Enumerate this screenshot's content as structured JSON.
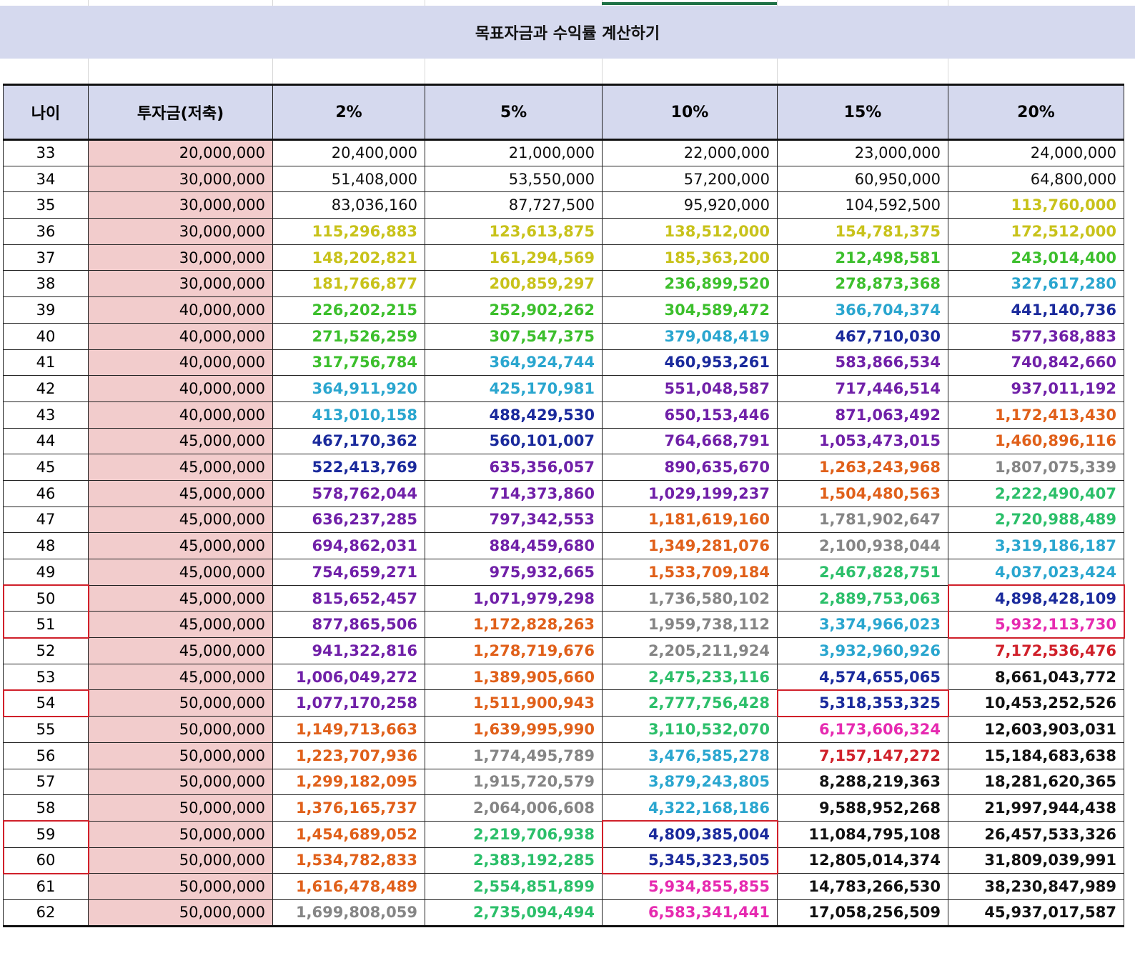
{
  "banner": {
    "title": "목표자금과 수익률 계산하기"
  },
  "headers": [
    "나이",
    "투자금(저축)",
    "2%",
    "5%",
    "10%",
    "15%",
    "20%"
  ],
  "colors": {
    "k": "#111111",
    "y": "#c8c21a",
    "g": "#3cbf2c",
    "c": "#2aa6cf",
    "n": "#1a2a9c",
    "p": "#7020a8",
    "o": "#e0601a",
    "s": "#858585",
    "m": "#e62ab0",
    "t": "#2cbf6a",
    "r": "#d0202a",
    "banner_bg": "#d5d9ee",
    "investment_bg": "#f2cccc",
    "highlight": "#d0202a"
  },
  "rows": [
    {
      "age": "33",
      "investment": "20,000,000",
      "values": [
        "20,400,000",
        "21,000,000",
        "22,000,000",
        "23,000,000",
        "24,000,000"
      ],
      "styles": [
        "k",
        "k",
        "k",
        "k",
        "k"
      ]
    },
    {
      "age": "34",
      "investment": "30,000,000",
      "values": [
        "51,408,000",
        "53,550,000",
        "57,200,000",
        "60,950,000",
        "64,800,000"
      ],
      "styles": [
        "k",
        "k",
        "k",
        "k",
        "k"
      ]
    },
    {
      "age": "35",
      "investment": "30,000,000",
      "values": [
        "83,036,160",
        "87,727,500",
        "95,920,000",
        "104,592,500",
        "113,760,000"
      ],
      "styles": [
        "k",
        "k",
        "k",
        "k",
        "y"
      ]
    },
    {
      "age": "36",
      "investment": "30,000,000",
      "values": [
        "115,296,883",
        "123,613,875",
        "138,512,000",
        "154,781,375",
        "172,512,000"
      ],
      "styles": [
        "y",
        "y",
        "y",
        "y",
        "y"
      ]
    },
    {
      "age": "37",
      "investment": "30,000,000",
      "values": [
        "148,202,821",
        "161,294,569",
        "185,363,200",
        "212,498,581",
        "243,014,400"
      ],
      "styles": [
        "y",
        "y",
        "y",
        "g",
        "g"
      ]
    },
    {
      "age": "38",
      "investment": "30,000,000",
      "values": [
        "181,766,877",
        "200,859,297",
        "236,899,520",
        "278,873,368",
        "327,617,280"
      ],
      "styles": [
        "y",
        "y",
        "g",
        "g",
        "c"
      ]
    },
    {
      "age": "39",
      "investment": "40,000,000",
      "values": [
        "226,202,215",
        "252,902,262",
        "304,589,472",
        "366,704,374",
        "441,140,736"
      ],
      "styles": [
        "g",
        "g",
        "g",
        "c",
        "n"
      ]
    },
    {
      "age": "40",
      "investment": "40,000,000",
      "values": [
        "271,526,259",
        "307,547,375",
        "379,048,419",
        "467,710,030",
        "577,368,883"
      ],
      "styles": [
        "g",
        "g",
        "c",
        "n",
        "p"
      ]
    },
    {
      "age": "41",
      "investment": "40,000,000",
      "values": [
        "317,756,784",
        "364,924,744",
        "460,953,261",
        "583,866,534",
        "740,842,660"
      ],
      "styles": [
        "g",
        "c",
        "n",
        "p",
        "p"
      ]
    },
    {
      "age": "42",
      "investment": "40,000,000",
      "values": [
        "364,911,920",
        "425,170,981",
        "551,048,587",
        "717,446,514",
        "937,011,192"
      ],
      "styles": [
        "c",
        "c",
        "p",
        "p",
        "p"
      ]
    },
    {
      "age": "43",
      "investment": "40,000,000",
      "values": [
        "413,010,158",
        "488,429,530",
        "650,153,446",
        "871,063,492",
        "1,172,413,430"
      ],
      "styles": [
        "c",
        "n",
        "p",
        "p",
        "o"
      ]
    },
    {
      "age": "44",
      "investment": "45,000,000",
      "values": [
        "467,170,362",
        "560,101,007",
        "764,668,791",
        "1,053,473,015",
        "1,460,896,116"
      ],
      "styles": [
        "n",
        "n",
        "p",
        "p",
        "o"
      ]
    },
    {
      "age": "45",
      "investment": "45,000,000",
      "values": [
        "522,413,769",
        "635,356,057",
        "890,635,670",
        "1,263,243,968",
        "1,807,075,339"
      ],
      "styles": [
        "n",
        "p",
        "p",
        "o",
        "s"
      ]
    },
    {
      "age": "46",
      "investment": "45,000,000",
      "values": [
        "578,762,044",
        "714,373,860",
        "1,029,199,237",
        "1,504,480,563",
        "2,222,490,407"
      ],
      "styles": [
        "p",
        "p",
        "p",
        "o",
        "t"
      ]
    },
    {
      "age": "47",
      "investment": "45,000,000",
      "values": [
        "636,237,285",
        "797,342,553",
        "1,181,619,160",
        "1,781,902,647",
        "2,720,988,489"
      ],
      "styles": [
        "p",
        "p",
        "o",
        "s",
        "t"
      ]
    },
    {
      "age": "48",
      "investment": "45,000,000",
      "values": [
        "694,862,031",
        "884,459,680",
        "1,349,281,076",
        "2,100,938,044",
        "3,319,186,187"
      ],
      "styles": [
        "p",
        "p",
        "o",
        "s",
        "c"
      ]
    },
    {
      "age": "49",
      "investment": "45,000,000",
      "values": [
        "754,659,271",
        "975,932,665",
        "1,533,709,184",
        "2,467,828,751",
        "4,037,023,424"
      ],
      "styles": [
        "p",
        "p",
        "o",
        "t",
        "c"
      ]
    },
    {
      "age": "50",
      "investment": "45,000,000",
      "values": [
        "815,652,457",
        "1,071,979,298",
        "1,736,580,102",
        "2,889,753,063",
        "4,898,428,109"
      ],
      "styles": [
        "p",
        "p",
        "s",
        "t",
        "n"
      ]
    },
    {
      "age": "51",
      "investment": "45,000,000",
      "values": [
        "877,865,506",
        "1,172,828,263",
        "1,959,738,112",
        "3,374,966,023",
        "5,932,113,730"
      ],
      "styles": [
        "p",
        "o",
        "s",
        "c",
        "m"
      ]
    },
    {
      "age": "52",
      "investment": "45,000,000",
      "values": [
        "941,322,816",
        "1,278,719,676",
        "2,205,211,924",
        "3,932,960,926",
        "7,172,536,476"
      ],
      "styles": [
        "p",
        "o",
        "s",
        "c",
        "r"
      ]
    },
    {
      "age": "53",
      "investment": "45,000,000",
      "values": [
        "1,006,049,272",
        "1,389,905,660",
        "2,475,233,116",
        "4,574,655,065",
        "8,661,043,772"
      ],
      "styles": [
        "p",
        "o",
        "t",
        "n",
        "k"
      ]
    },
    {
      "age": "54",
      "investment": "50,000,000",
      "values": [
        "1,077,170,258",
        "1,511,900,943",
        "2,777,756,428",
        "5,318,353,325",
        "10,453,252,526"
      ],
      "styles": [
        "p",
        "o",
        "t",
        "n",
        "k"
      ]
    },
    {
      "age": "55",
      "investment": "50,000,000",
      "values": [
        "1,149,713,663",
        "1,639,995,990",
        "3,110,532,070",
        "6,173,606,324",
        "12,603,903,031"
      ],
      "styles": [
        "o",
        "o",
        "t",
        "m",
        "k"
      ]
    },
    {
      "age": "56",
      "investment": "50,000,000",
      "values": [
        "1,223,707,936",
        "1,774,495,789",
        "3,476,585,278",
        "7,157,147,272",
        "15,184,683,638"
      ],
      "styles": [
        "o",
        "s",
        "c",
        "r",
        "k"
      ]
    },
    {
      "age": "57",
      "investment": "50,000,000",
      "values": [
        "1,299,182,095",
        "1,915,720,579",
        "3,879,243,805",
        "8,288,219,363",
        "18,281,620,365"
      ],
      "styles": [
        "o",
        "s",
        "c",
        "k",
        "k"
      ]
    },
    {
      "age": "58",
      "investment": "50,000,000",
      "values": [
        "1,376,165,737",
        "2,064,006,608",
        "4,322,168,186",
        "9,588,952,268",
        "21,997,944,438"
      ],
      "styles": [
        "o",
        "s",
        "c",
        "k",
        "k"
      ]
    },
    {
      "age": "59",
      "investment": "50,000,000",
      "values": [
        "1,454,689,052",
        "2,219,706,938",
        "4,809,385,004",
        "11,084,795,108",
        "26,457,533,326"
      ],
      "styles": [
        "o",
        "t",
        "n",
        "k",
        "k"
      ]
    },
    {
      "age": "60",
      "investment": "50,000,000",
      "values": [
        "1,534,782,833",
        "2,383,192,285",
        "5,345,323,505",
        "12,805,014,374",
        "31,809,039,991"
      ],
      "styles": [
        "o",
        "t",
        "n",
        "k",
        "k"
      ]
    },
    {
      "age": "61",
      "investment": "50,000,000",
      "values": [
        "1,616,478,489",
        "2,554,851,899",
        "5,934,855,855",
        "14,783,266,530",
        "38,230,847,989"
      ],
      "styles": [
        "o",
        "t",
        "m",
        "k",
        "k"
      ]
    },
    {
      "age": "62",
      "investment": "50,000,000",
      "values": [
        "1,699,808,059",
        "2,735,094,494",
        "6,583,341,441",
        "17,058,256,509",
        "45,937,017,587"
      ],
      "styles": [
        "s",
        "t",
        "m",
        "k",
        "k"
      ]
    }
  ],
  "highlights": [
    {
      "rows": [
        17,
        18
      ],
      "col": 0
    },
    {
      "rows": [
        17,
        18
      ],
      "col": 6
    },
    {
      "rows": [
        21,
        21
      ],
      "col": 0
    },
    {
      "rows": [
        21,
        21
      ],
      "col": 5
    },
    {
      "rows": [
        26,
        27
      ],
      "col": 0
    },
    {
      "rows": [
        26,
        27
      ],
      "col": 4
    }
  ]
}
